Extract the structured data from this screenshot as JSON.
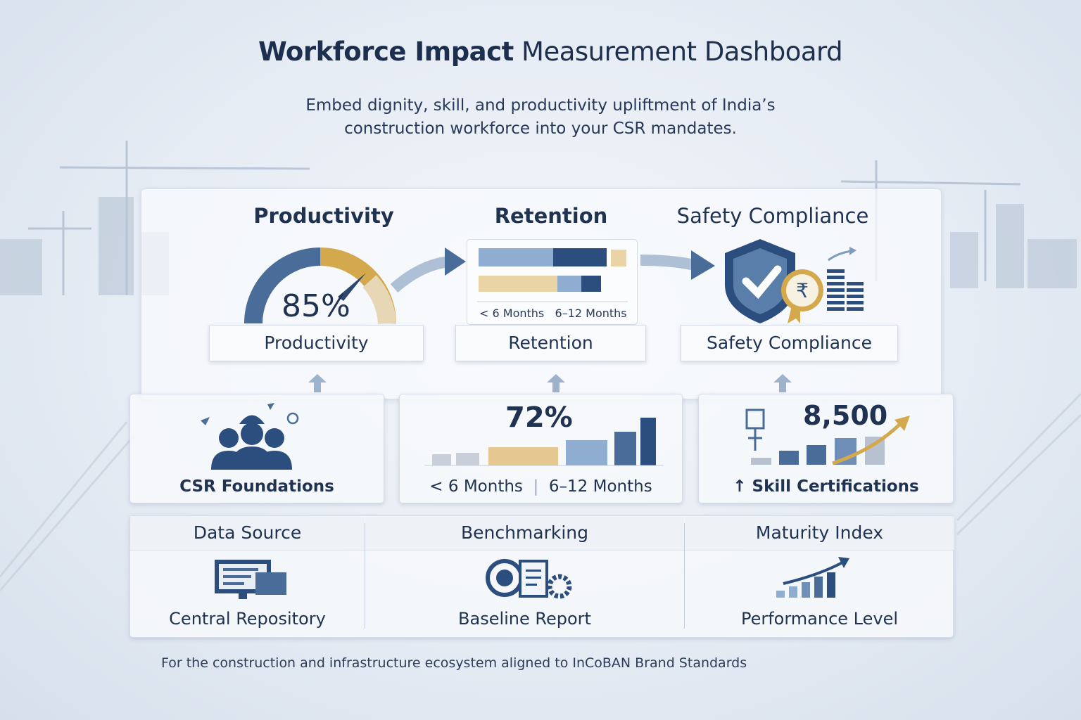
{
  "title": {
    "bold": "Workforce Impact",
    "rest": " Measurement Dashboard"
  },
  "subtitle": [
    "Embed dignity, skill, and productivity upliftment of India’s",
    "construction workforce into your CSR mandates."
  ],
  "metrics": {
    "productivity": {
      "heading": "Productivity",
      "value": "85%",
      "label": "Productivity",
      "gauge_fraction": 0.85
    },
    "retention": {
      "heading": "Retention",
      "legend": [
        "< 6 Months",
        "6–12 Months"
      ],
      "label": "Retention"
    },
    "safety": {
      "heading": "Safety Compliance",
      "label": "Safety Compliance",
      "currency_symbol": "₹"
    }
  },
  "cards": {
    "csr": {
      "caption": "CSR Foundations"
    },
    "retention": {
      "value": "72%",
      "caption_left": "< 6 Months",
      "caption_right": "6–12 Months"
    },
    "skills": {
      "value": "8,500",
      "caption": "↑ Skill Certifications"
    }
  },
  "bottom": {
    "data_source": {
      "heading": "Data Source",
      "caption": "Central Repository"
    },
    "benchmarking": {
      "heading": "Benchmarking",
      "caption": "Baseline Report"
    },
    "maturity": {
      "heading": "Maturity Index",
      "caption": "Performance Level"
    }
  },
  "footer": "For the construction and infrastructure ecosystem aligned to InCoBAN Brand Standards",
  "colors": {
    "navy": "#1f3252",
    "blue": "#4a6c98",
    "light_blue": "#8fadd0",
    "gold": "#d4a94e",
    "tan": "#ead3a4"
  }
}
